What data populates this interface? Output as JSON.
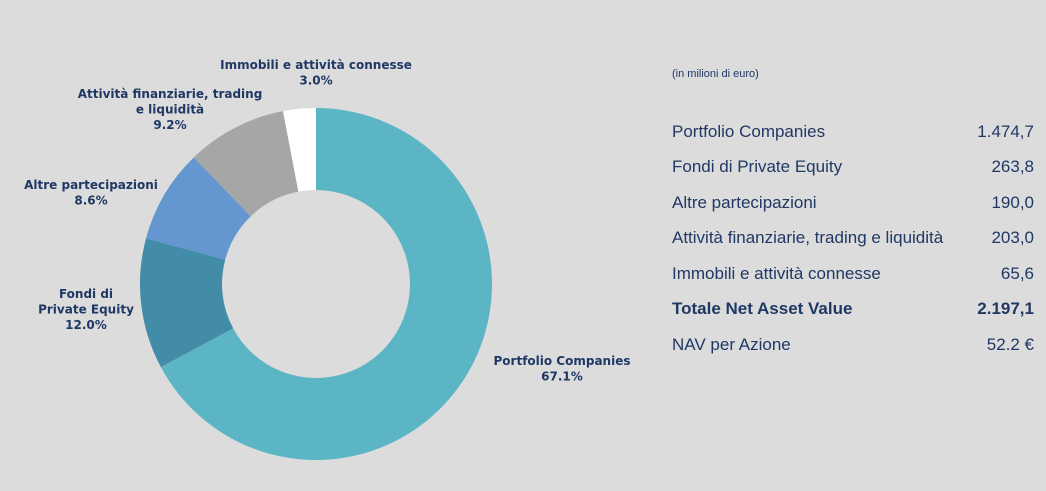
{
  "chart_data": {
    "type": "pie",
    "style": "donut",
    "slices": [
      {
        "label_lines": [
          "Portfolio Companies"
        ],
        "pct_label": "67.1%",
        "value": 67.1,
        "color": "#5bb5c5"
      },
      {
        "label_lines": [
          "Fondi di",
          "Private Equity"
        ],
        "pct_label": "12.0%",
        "value": 12.0,
        "color": "#438ca8"
      },
      {
        "label_lines": [
          "Altre partecipazioni"
        ],
        "pct_label": "8.6%",
        "value": 8.6,
        "color": "#6497cf"
      },
      {
        "label_lines": [
          "Attività finanziarie, trading",
          "e liquidità"
        ],
        "pct_label": "9.2%",
        "value": 9.2,
        "color": "#a6a6a6"
      },
      {
        "label_lines": [
          "Immobili e attività connesse"
        ],
        "pct_label": "3.0%",
        "value": 3.0,
        "color": "#ffffff"
      }
    ]
  },
  "table": {
    "units_note": "(in milioni di euro)",
    "rows": [
      {
        "label": "Portfolio Companies",
        "value": "1.474,7"
      },
      {
        "label": "Fondi di Private Equity",
        "value": "263,8"
      },
      {
        "label": "Altre partecipazioni",
        "value": "190,0"
      },
      {
        "label": "Attività finanziarie, trading e liquidità",
        "value": "203,0"
      },
      {
        "label": "Immobili e attività connesse",
        "value": "65,6"
      }
    ],
    "total": {
      "label": "Totale Net Asset Value",
      "value": "2.197,1"
    },
    "nav": {
      "label": "NAV per Azione",
      "value": "52.2 €"
    }
  }
}
